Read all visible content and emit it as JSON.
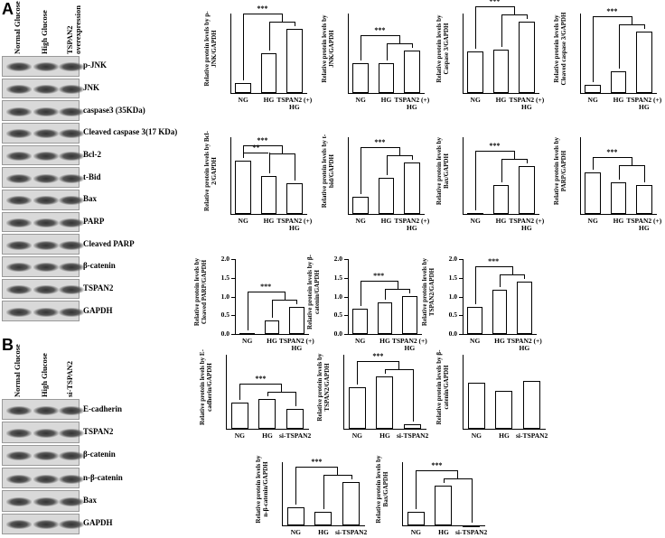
{
  "panels": [
    "A",
    "B"
  ],
  "blots_a": {
    "lanes": [
      "Normal Glucose",
      "High Glucose",
      "TSPAN2 overexpression"
    ],
    "rows": [
      "p-JNK",
      "JNK",
      "caspase3 (35KDa)",
      "Cleaved caspase 3(17 KDa)",
      "Bcl-2",
      "t-Bid",
      "Bax",
      "PARP",
      "Cleaved PARP",
      "β-catenin",
      "TSPAN2",
      "GAPDH"
    ]
  },
  "blots_b": {
    "lanes": [
      "Normal Glucose",
      "High Glucose",
      "si-TSPAN2"
    ],
    "rows": [
      "E-cadherin",
      "TSPAN2",
      "β-catenin",
      "n-β-catenin",
      "Bax",
      "GAPDH"
    ]
  },
  "chart_data": [
    {
      "type": "bar",
      "ylabel": "Relative protein levels by p-JNK/GAPDH",
      "categories": [
        "NG",
        "HG",
        "TSPAN2 (+) HG"
      ],
      "values": [
        0.2,
        0.8,
        1.3
      ],
      "ylim": [
        0,
        1.6
      ],
      "annotations": [
        "***"
      ]
    },
    {
      "type": "bar",
      "ylabel": "Relative protein levels by JNK/GAPDH",
      "categories": [
        "NG",
        "HG",
        "TSPAN2 (+) HG"
      ],
      "values": [
        0.6,
        0.6,
        0.85
      ],
      "ylim": [
        0,
        1.6
      ],
      "annotations": [
        "***"
      ]
    },
    {
      "type": "bar",
      "ylabel": "Relative protein levels by Caspase 3/GAPDH",
      "categories": [
        "NG",
        "HG",
        "TSPAN2 (+) HG"
      ],
      "values": [
        1.05,
        1.1,
        1.8
      ],
      "ylim": [
        0,
        2
      ],
      "annotations": [
        "***"
      ]
    },
    {
      "type": "bar",
      "ylabel": "Relative protein levels by Cleaved caspase 3/GAPDH",
      "categories": [
        "NG",
        "HG",
        "TSPAN2 (+) HG"
      ],
      "values": [
        0.2,
        0.55,
        1.55
      ],
      "ylim": [
        0,
        2
      ],
      "annotations": [
        "***"
      ]
    },
    {
      "type": "bar",
      "ylabel": "Relative protein levels by Bcl-2/GAPDH",
      "categories": [
        "NG",
        "HG",
        "TSPAN2 (+) HG"
      ],
      "values": [
        1.05,
        0.75,
        0.6
      ],
      "ylim": [
        0,
        1.5
      ],
      "annotations": [
        "***",
        "**"
      ]
    },
    {
      "type": "bar",
      "ylabel": "Relative protein levels by t-bid/GAPDH",
      "categories": [
        "NG",
        "HG",
        "TSPAN2 (+) HG"
      ],
      "values": [
        0.45,
        0.95,
        1.35
      ],
      "ylim": [
        0,
        2
      ],
      "annotations": [
        "***"
      ]
    },
    {
      "type": "bar",
      "ylabel": "Relative protein levels by Bax/GAPDH",
      "categories": [
        "NG",
        "HG",
        "TSPAN2 (+) HG"
      ],
      "values": [
        0.02,
        0.45,
        0.75
      ],
      "ylim": [
        0,
        1.2
      ],
      "annotations": [
        "***"
      ]
    },
    {
      "type": "bar",
      "ylabel": "Relative protein levels by PARP/GAPDH",
      "categories": [
        "NG",
        "HG",
        "TSPAN2 (+) HG"
      ],
      "values": [
        0.65,
        0.5,
        0.45
      ],
      "ylim": [
        0,
        1.2
      ],
      "annotations": [
        "***"
      ]
    },
    {
      "type": "bar",
      "ylabel": "Relative protein levels by Cleaved PARP/GAPDH",
      "categories": [
        "NG",
        "HG",
        "TSPAN2 (+) HG"
      ],
      "values": [
        0.02,
        0.35,
        0.72
      ],
      "ylim": [
        0,
        2
      ],
      "yticks": [
        {
          "value": 0,
          "label": "0.0"
        },
        0.5,
        {
          "value": 1,
          "label": "1.0"
        },
        1.5,
        {
          "value": 2,
          "label": "2.0"
        }
      ],
      "annotations": [
        "***"
      ]
    },
    {
      "type": "bar",
      "ylabel": "Relative protein levels by β-catenin/GAPDH",
      "categories": [
        "NG",
        "HG",
        "TSPAN2 (+) HG"
      ],
      "values": [
        0.68,
        0.85,
        1.02
      ],
      "ylim": [
        0,
        2
      ],
      "yticks": [
        {
          "value": 0,
          "label": "0.0"
        },
        0.5,
        {
          "value": 1,
          "label": "1.0"
        },
        1.5,
        {
          "value": 2,
          "label": "2.0"
        }
      ],
      "annotations": [
        "***"
      ]
    },
    {
      "type": "bar",
      "ylabel": "Relative protein levels by TSPAN2/GAPDH",
      "categories": [
        "NG",
        "HG",
        "TSPAN2 (+) HG"
      ],
      "values": [
        0.72,
        1.18,
        1.4
      ],
      "ylim": [
        0,
        2
      ],
      "yticks": [
        {
          "value": 0,
          "label": "0.0"
        },
        0.5,
        {
          "value": 1,
          "label": "1.0"
        },
        1.5,
        {
          "value": 2,
          "label": "2.0"
        }
      ],
      "annotations": [
        "***"
      ]
    },
    {
      "type": "bar",
      "ylabel": "Relative protein levels by E-cadherin/GAPDH",
      "categories": [
        "NG",
        "HG",
        "si-TSPAN2"
      ],
      "values": [
        0.42,
        0.48,
        0.32
      ],
      "ylim": [
        0,
        1.2
      ],
      "annotations": [
        "***"
      ]
    },
    {
      "type": "bar",
      "ylabel": "Relative protein levels by TSPAN2/GAPDH",
      "categories": [
        "NG",
        "HG",
        "si-TSPAN2"
      ],
      "values": [
        0.68,
        0.85,
        0.08
      ],
      "ylim": [
        0,
        1.2
      ],
      "annotations": [
        "***"
      ]
    },
    {
      "type": "bar",
      "ylabel": "Relative protein levels by β-catenin/GAPDH",
      "categories": [
        "NG",
        "HG",
        "si-TSPAN2"
      ],
      "values": [
        0.75,
        0.62,
        0.78
      ],
      "ylim": [
        0,
        1.2
      ],
      "annotations": []
    },
    {
      "type": "bar",
      "ylabel": "Relative protein levels by n-β-catenin/GAPDH",
      "categories": [
        "NG",
        "HG",
        "si-TSPAN2"
      ],
      "values": [
        0.35,
        0.25,
        0.82
      ],
      "ylim": [
        0,
        1.2
      ],
      "annotations": [
        "***"
      ]
    },
    {
      "type": "bar",
      "ylabel": "Relative protein levels by Bax/GAPDH",
      "categories": [
        "NG",
        "HG",
        "si-TSPAN2"
      ],
      "values": [
        0.25,
        0.75,
        0.0
      ],
      "ylim": [
        0,
        1.2
      ],
      "annotations": [
        "***"
      ]
    }
  ]
}
